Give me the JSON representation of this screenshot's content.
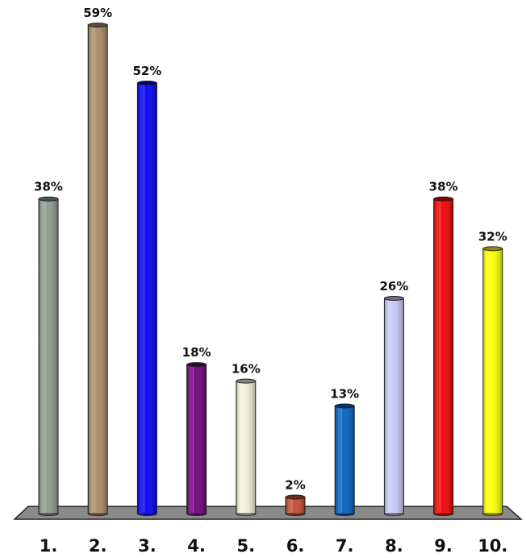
{
  "chart_data": {
    "type": "bar",
    "title": "",
    "xlabel": "",
    "ylabel": "",
    "ylim": [
      0,
      61
    ],
    "grid": false,
    "legend": "none",
    "categories": [
      "1.",
      "2.",
      "3.",
      "4.",
      "5.",
      "6.",
      "7.",
      "8.",
      "9.",
      "10."
    ],
    "values": [
      38,
      59,
      52,
      18,
      16,
      2,
      13,
      26,
      38,
      32
    ],
    "value_labels": [
      "38%",
      "59%",
      "52%",
      "18%",
      "16%",
      "2%",
      "13%",
      "26%",
      "38%",
      "32%"
    ],
    "colors": [
      "#8a9a8e",
      "#a98a65",
      "#0000f0",
      "#70007a",
      "#f2f0d8",
      "#c24a32",
      "#0060c0",
      "#c8c8f8",
      "#f00000",
      "#ffff00"
    ],
    "floor_color": "#8a8a8a"
  }
}
